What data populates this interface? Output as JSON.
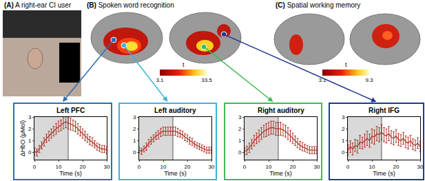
{
  "panels": [
    {
      "label": "(A)",
      "title": "A right-ear CI user"
    },
    {
      "label": "(B)",
      "title": "Spoken word recognition",
      "colorbar": {
        "label": "t",
        "range": [
          3.1,
          33.5
        ],
        "ticks": [
          3.1,
          33.5
        ]
      }
    },
    {
      "label": "(C)",
      "title": "Spatial working memory",
      "colorbar": {
        "label": "t",
        "range": [
          3.1,
          9.3
        ],
        "ticks": [
          3.1,
          9.3
        ]
      }
    }
  ],
  "chart_data": [
    {
      "type": "line",
      "title": "Left PFC",
      "xlabel": "Time (s)",
      "ylabel": "ΔHbO (μMol)",
      "color": "#b03a2e",
      "line_style": "solid",
      "x": [
        0,
        1,
        2,
        3,
        4,
        5,
        6,
        7,
        8,
        9,
        10,
        11,
        12,
        13,
        14,
        15,
        16,
        17,
        18,
        19,
        20,
        21,
        22,
        23,
        24,
        25,
        26,
        27,
        28,
        29,
        30
      ],
      "values": [
        0.1,
        0.0,
        0.3,
        0.6,
        0.9,
        1.2,
        1.4,
        1.6,
        1.8,
        2.0,
        2.2,
        2.3,
        2.5,
        2.6,
        2.5,
        2.4,
        2.3,
        2.2,
        2.0,
        1.8,
        1.6,
        1.4,
        1.2,
        1.0,
        0.9,
        0.7,
        0.5,
        0.4,
        0.3,
        0.3,
        0.2
      ],
      "error": [
        0.3,
        0.3,
        0.3,
        0.3,
        0.35,
        0.35,
        0.4,
        0.4,
        0.4,
        0.45,
        0.45,
        0.45,
        0.5,
        0.5,
        0.5,
        0.5,
        0.45,
        0.45,
        0.45,
        0.4,
        0.4,
        0.4,
        0.35,
        0.35,
        0.35,
        0.3,
        0.3,
        0.3,
        0.3,
        0.3,
        0.3
      ],
      "shaded_region": [
        0,
        14
      ],
      "xlim": [
        0,
        30
      ],
      "xticks": [
        0,
        10,
        20,
        30
      ],
      "ylim": [
        -0.6,
        3
      ],
      "yticks": [
        0,
        1,
        2,
        3
      ]
    },
    {
      "type": "line",
      "title": "Left auditory",
      "xlabel": "Time (s)",
      "color": "#b03a2e",
      "line_style": "solid",
      "x": [
        0,
        1,
        2,
        3,
        4,
        5,
        6,
        7,
        8,
        9,
        10,
        11,
        12,
        13,
        14,
        15,
        16,
        17,
        18,
        19,
        20,
        21,
        22,
        23,
        24,
        25,
        26,
        27,
        28,
        29,
        30
      ],
      "values": [
        0.2,
        0.1,
        0.3,
        0.5,
        0.8,
        1.0,
        1.2,
        1.4,
        1.5,
        1.7,
        1.8,
        1.8,
        1.8,
        1.8,
        1.8,
        1.8,
        1.7,
        1.6,
        1.5,
        1.3,
        1.2,
        1.0,
        0.9,
        0.7,
        0.6,
        0.5,
        0.4,
        0.3,
        0.2,
        0.2,
        0.2
      ],
      "error": [
        0.25,
        0.25,
        0.25,
        0.3,
        0.3,
        0.3,
        0.3,
        0.3,
        0.35,
        0.35,
        0.35,
        0.35,
        0.35,
        0.35,
        0.35,
        0.35,
        0.35,
        0.3,
        0.3,
        0.3,
        0.3,
        0.3,
        0.3,
        0.25,
        0.25,
        0.25,
        0.25,
        0.25,
        0.25,
        0.25,
        0.25
      ],
      "shaded_region": [
        0,
        14
      ],
      "xlim": [
        0,
        30
      ],
      "xticks": [
        0,
        10,
        20,
        30
      ],
      "ylim": [
        -0.6,
        3
      ],
      "yticks": [
        0,
        1,
        2,
        3
      ]
    },
    {
      "type": "line",
      "title": "Right auditory",
      "xlabel": "Time (s)",
      "color": "#b03a2e",
      "line_style": "solid",
      "x": [
        0,
        1,
        2,
        3,
        4,
        5,
        6,
        7,
        8,
        9,
        10,
        11,
        12,
        13,
        14,
        15,
        16,
        17,
        18,
        19,
        20,
        21,
        22,
        23,
        24,
        25,
        26,
        27,
        28,
        29,
        30
      ],
      "values": [
        0.1,
        0.2,
        0.4,
        0.7,
        1.0,
        1.2,
        1.4,
        1.6,
        1.8,
        1.9,
        2.0,
        2.1,
        2.1,
        2.0,
        2.0,
        2.0,
        1.9,
        1.8,
        1.6,
        1.4,
        1.2,
        1.0,
        0.8,
        0.6,
        0.5,
        0.4,
        0.3,
        0.2,
        0.2,
        0.2,
        0.2
      ],
      "error": [
        0.3,
        0.35,
        0.4,
        0.4,
        0.45,
        0.45,
        0.5,
        0.5,
        0.5,
        0.55,
        0.55,
        0.55,
        0.55,
        0.55,
        0.55,
        0.55,
        0.5,
        0.5,
        0.5,
        0.45,
        0.45,
        0.4,
        0.4,
        0.35,
        0.35,
        0.3,
        0.3,
        0.3,
        0.3,
        0.3,
        0.3
      ],
      "shaded_region": [
        0,
        14
      ],
      "xlim": [
        0,
        30
      ],
      "xticks": [
        0,
        10,
        20,
        30
      ],
      "ylim": [
        -0.6,
        3
      ],
      "yticks": [
        0,
        1,
        2,
        3
      ]
    },
    {
      "type": "line",
      "title": "Right IFG",
      "xlabel": "Time (s)",
      "color": "#b03a2e",
      "line_style": "solid",
      "x": [
        0,
        1,
        2,
        3,
        4,
        5,
        6,
        7,
        8,
        9,
        10,
        11,
        12,
        13,
        14,
        15,
        16,
        17,
        18,
        19,
        20,
        21,
        22,
        23,
        24,
        25,
        26,
        27,
        28,
        29,
        30
      ],
      "values": [
        0.2,
        0.5,
        0.3,
        0.6,
        0.5,
        0.9,
        0.8,
        1.0,
        1.2,
        1.0,
        1.4,
        1.3,
        1.6,
        1.5,
        1.7,
        1.5,
        1.4,
        1.6,
        1.3,
        1.2,
        1.4,
        1.1,
        1.0,
        1.2,
        0.9,
        0.8,
        1.0,
        0.7,
        0.6,
        0.8,
        0.5
      ],
      "error": [
        0.45,
        0.5,
        0.5,
        0.5,
        0.55,
        0.55,
        0.5,
        0.55,
        0.6,
        0.55,
        0.6,
        0.6,
        0.6,
        0.6,
        0.65,
        0.6,
        0.6,
        0.6,
        0.55,
        0.55,
        0.55,
        0.5,
        0.5,
        0.5,
        0.5,
        0.5,
        0.45,
        0.45,
        0.45,
        0.45,
        0.45
      ],
      "shaded_region": [
        0,
        14
      ],
      "xlim": [
        0,
        30
      ],
      "xticks": [
        0,
        10,
        20,
        30
      ],
      "ylim": [
        -0.6,
        3
      ],
      "yticks": [
        0,
        1,
        2,
        3
      ]
    }
  ]
}
